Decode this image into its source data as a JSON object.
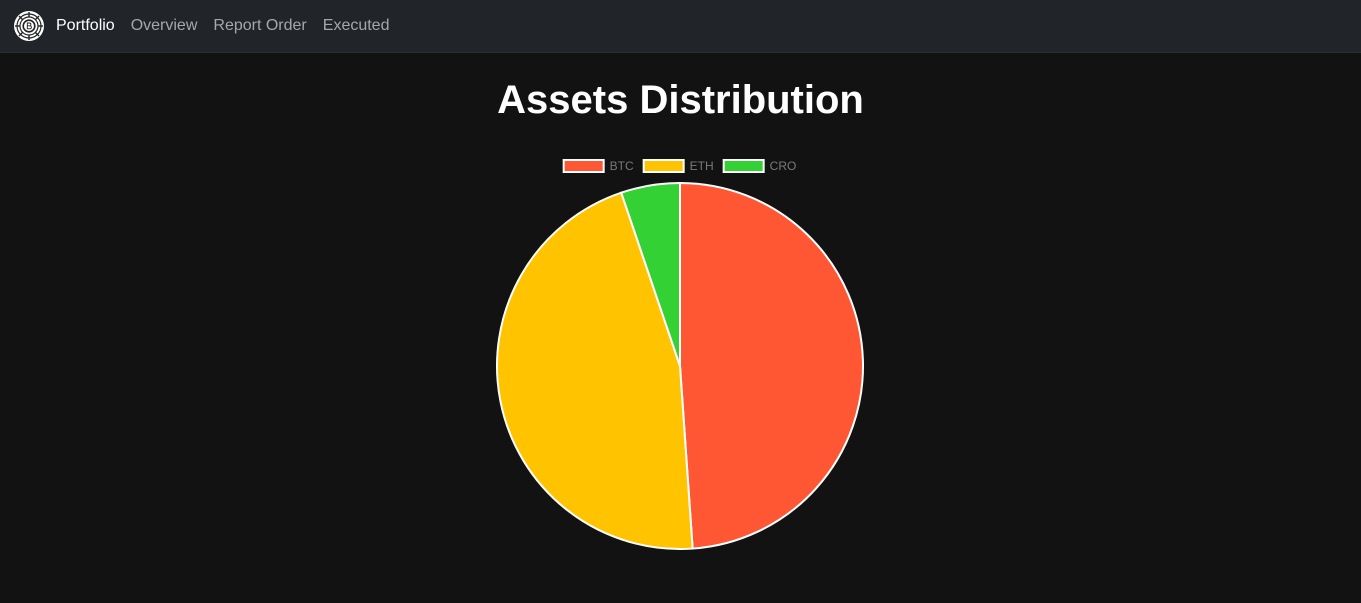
{
  "navbar": {
    "brand_label": "Portfolio",
    "links": [
      {
        "label": "Overview"
      },
      {
        "label": "Report Order"
      },
      {
        "label": "Executed"
      }
    ]
  },
  "page": {
    "title": "Assets Distribution"
  },
  "chart_data": {
    "type": "pie",
    "labels": [
      "BTC",
      "ETH",
      "CRO"
    ],
    "values": [
      48.9,
      45.9,
      5.2
    ],
    "colors": [
      "#ff5733",
      "#ffc300",
      "#33d133"
    ],
    "border_color": "#ffffff",
    "legend": "top"
  }
}
